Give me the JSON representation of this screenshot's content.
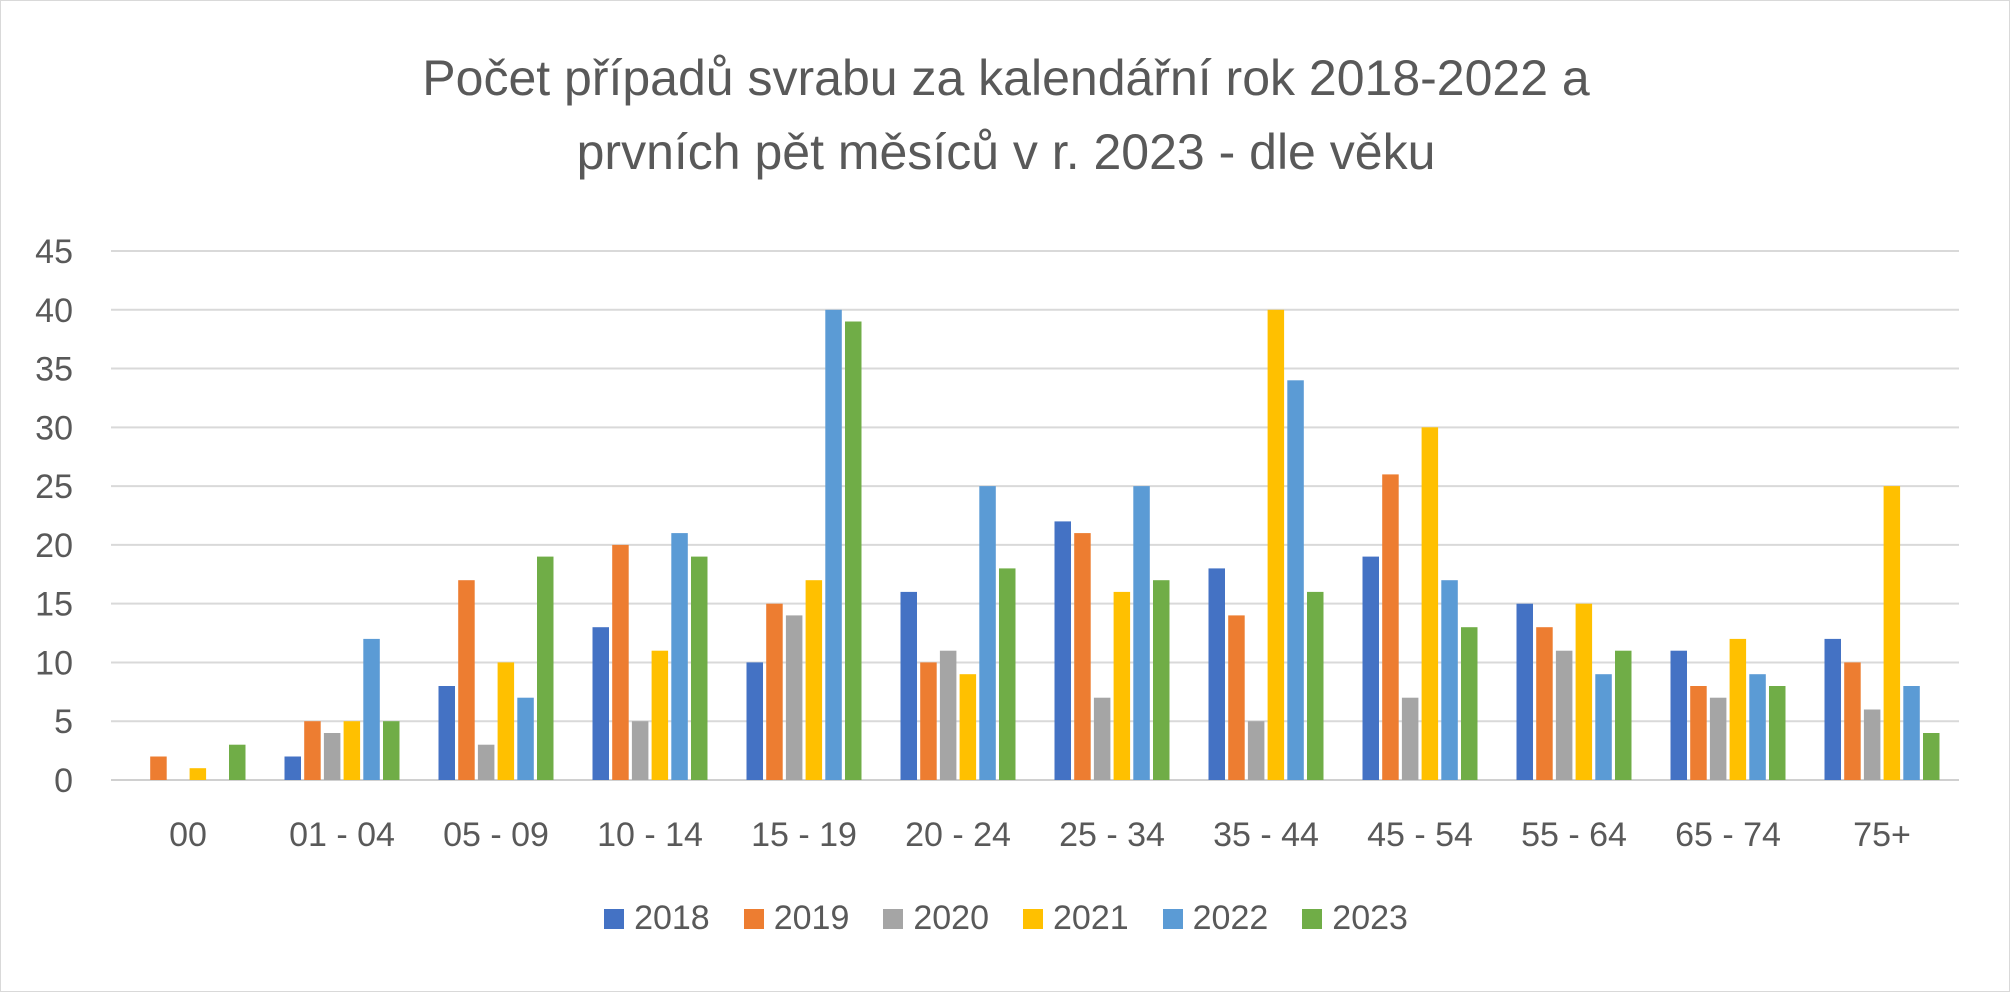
{
  "chart_data": {
    "type": "bar",
    "title_lines": [
      "Počet případů svrabu za kalendářní rok 2018-2022 a",
      "prvních pět měsíců v r. 2023 - dle věku"
    ],
    "categories": [
      "00",
      "01 - 04",
      "05 - 09",
      "10 - 14",
      "15 - 19",
      "20 - 24",
      "25 - 34",
      "35 - 44",
      "45 - 54",
      "55 - 64",
      "65 - 74",
      "75+"
    ],
    "series": [
      {
        "name": "2018",
        "color": "#4472c4",
        "values": [
          0,
          2,
          8,
          13,
          10,
          16,
          22,
          18,
          19,
          15,
          11,
          12
        ]
      },
      {
        "name": "2019",
        "color": "#ed7d31",
        "values": [
          2,
          5,
          17,
          20,
          15,
          10,
          21,
          14,
          26,
          13,
          8,
          10
        ]
      },
      {
        "name": "2020",
        "color": "#a5a5a5",
        "values": [
          0,
          4,
          3,
          5,
          14,
          11,
          7,
          5,
          7,
          11,
          7,
          6
        ]
      },
      {
        "name": "2021",
        "color": "#ffc000",
        "values": [
          1,
          5,
          10,
          11,
          17,
          9,
          16,
          40,
          30,
          15,
          12,
          25
        ]
      },
      {
        "name": "2022",
        "color": "#5b9bd5",
        "values": [
          0,
          12,
          7,
          21,
          40,
          25,
          25,
          34,
          17,
          9,
          9,
          8
        ]
      },
      {
        "name": "2023",
        "color": "#70ad47",
        "values": [
          3,
          5,
          19,
          19,
          39,
          18,
          17,
          16,
          13,
          11,
          8,
          4
        ]
      }
    ],
    "yticks": [
      "0",
      "5",
      "10",
      "15",
      "20",
      "25",
      "30",
      "35",
      "40",
      "45"
    ],
    "ylim": [
      0,
      45
    ],
    "grid": true,
    "legend_position": "bottom"
  }
}
